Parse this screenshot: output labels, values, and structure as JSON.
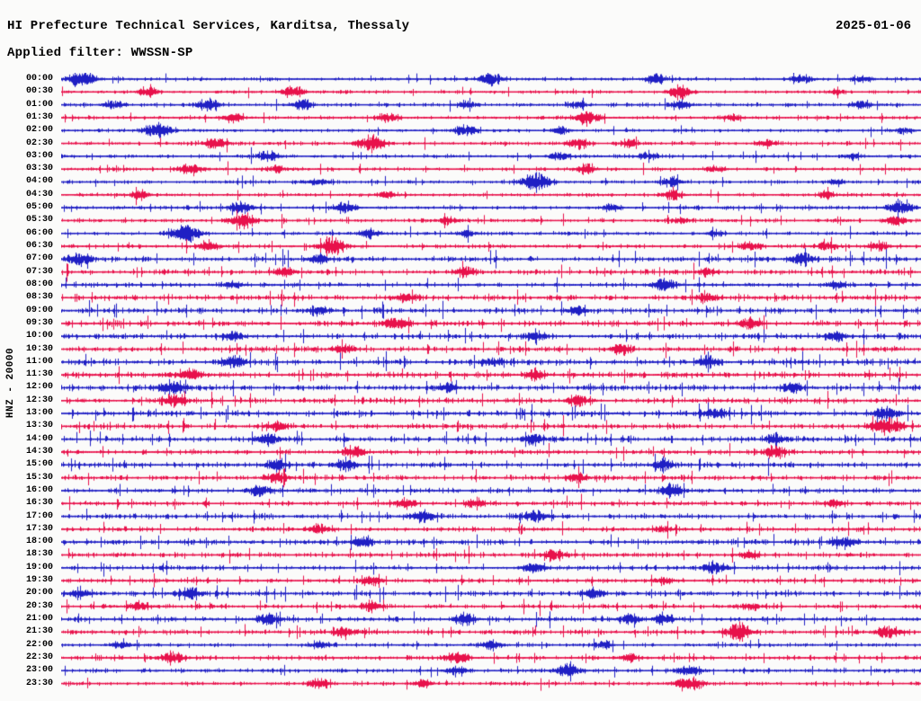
{
  "header": {
    "title": "HI Prefecture Technical Services, Karditsa, Thessaly",
    "date": "2025-01-06",
    "filter_label": "Applied filter: WWSSN-SP"
  },
  "y_axis": {
    "label": "HNZ - 20000",
    "channel": "HNZ",
    "gain": 20000
  },
  "chart_data": {
    "type": "line",
    "subtype": "helicorder-seismogram",
    "title": "HI Prefecture Technical Services, Karditsa, Thessaly",
    "date": "2025-01-06",
    "filter": "WWSSN-SP",
    "row_interval_minutes": 30,
    "time_range": [
      "00:00",
      "24:00"
    ],
    "grid": false,
    "legend": "none",
    "trace_colors": {
      "even": "#1f1fc4",
      "odd": "#e8114b"
    },
    "seed": 20250106,
    "events_format": "[fraction_along_row_0to1, peak_amplitude_px]",
    "rows": [
      {
        "time": "00:00",
        "noise": 0.35,
        "events": [
          [
            0.023,
            8
          ],
          [
            0.5,
            6
          ],
          [
            0.69,
            5
          ],
          [
            0.86,
            5
          ],
          [
            0.93,
            4
          ]
        ]
      },
      {
        "time": "00:30",
        "noise": 0.3,
        "events": [
          [
            0.1,
            5
          ],
          [
            0.27,
            6
          ],
          [
            0.72,
            6
          ],
          [
            0.9,
            3
          ]
        ]
      },
      {
        "time": "01:00",
        "noise": 0.45,
        "events": [
          [
            0.06,
            4
          ],
          [
            0.17,
            6
          ],
          [
            0.28,
            5
          ],
          [
            0.47,
            4
          ],
          [
            0.6,
            4
          ],
          [
            0.72,
            5
          ],
          [
            0.93,
            4
          ]
        ]
      },
      {
        "time": "01:30",
        "noise": 0.35,
        "events": [
          [
            0.2,
            5
          ],
          [
            0.38,
            5
          ],
          [
            0.61,
            7
          ],
          [
            0.78,
            4
          ]
        ]
      },
      {
        "time": "02:00",
        "noise": 0.3,
        "events": [
          [
            0.112,
            8
          ],
          [
            0.47,
            6
          ],
          [
            0.58,
            4
          ],
          [
            0.98,
            4
          ]
        ]
      },
      {
        "time": "02:30",
        "noise": 0.4,
        "events": [
          [
            0.18,
            6
          ],
          [
            0.36,
            8
          ],
          [
            0.6,
            5
          ],
          [
            0.66,
            4
          ],
          [
            0.82,
            4
          ]
        ]
      },
      {
        "time": "03:00",
        "noise": 0.4,
        "events": [
          [
            0.24,
            5
          ],
          [
            0.58,
            5
          ],
          [
            0.68,
            4
          ],
          [
            0.92,
            3
          ]
        ]
      },
      {
        "time": "03:30",
        "noise": 0.35,
        "events": [
          [
            0.15,
            6
          ],
          [
            0.25,
            4
          ],
          [
            0.61,
            5
          ],
          [
            0.76,
            4
          ]
        ]
      },
      {
        "time": "04:00",
        "noise": 0.35,
        "events": [
          [
            0.3,
            4
          ],
          [
            0.551,
            9
          ],
          [
            0.71,
            5
          ],
          [
            0.9,
            3
          ]
        ]
      },
      {
        "time": "04:30",
        "noise": 0.35,
        "events": [
          [
            0.09,
            5
          ],
          [
            0.38,
            4
          ],
          [
            0.71,
            5
          ],
          [
            0.89,
            4
          ]
        ]
      },
      {
        "time": "05:00",
        "noise": 0.4,
        "events": [
          [
            0.21,
            6
          ],
          [
            0.33,
            6
          ],
          [
            0.64,
            4
          ],
          [
            0.975,
            7
          ]
        ]
      },
      {
        "time": "05:30",
        "noise": 0.4,
        "events": [
          [
            0.21,
            8
          ],
          [
            0.45,
            4
          ],
          [
            0.72,
            4
          ],
          [
            0.97,
            5
          ]
        ]
      },
      {
        "time": "06:00",
        "noise": 0.4,
        "events": [
          [
            0.143,
            9
          ],
          [
            0.36,
            5
          ],
          [
            0.47,
            4
          ],
          [
            0.76,
            3
          ]
        ]
      },
      {
        "time": "06:30",
        "noise": 0.45,
        "events": [
          [
            0.17,
            5
          ],
          [
            0.316,
            8
          ],
          [
            0.8,
            5
          ],
          [
            0.89,
            5
          ],
          [
            0.95,
            5
          ]
        ]
      },
      {
        "time": "07:00",
        "noise": 0.75,
        "events": [
          [
            0.02,
            6
          ],
          [
            0.3,
            5
          ],
          [
            0.86,
            6
          ]
        ]
      },
      {
        "time": "07:30",
        "noise": 0.7,
        "events": [
          [
            0.26,
            5
          ],
          [
            0.47,
            5
          ],
          [
            0.75,
            4
          ]
        ]
      },
      {
        "time": "08:00",
        "noise": 0.55,
        "events": [
          [
            0.2,
            4
          ],
          [
            0.7,
            6
          ],
          [
            0.9,
            4
          ]
        ]
      },
      {
        "time": "08:30",
        "noise": 0.8,
        "events": [
          [
            0.4,
            5
          ],
          [
            0.75,
            5
          ]
        ]
      },
      {
        "time": "09:00",
        "noise": 0.85,
        "events": [
          [
            0.3,
            5
          ],
          [
            0.6,
            5
          ]
        ]
      },
      {
        "time": "09:30",
        "noise": 0.8,
        "events": [
          [
            0.39,
            6
          ],
          [
            0.8,
            5
          ]
        ]
      },
      {
        "time": "10:00",
        "noise": 0.8,
        "events": [
          [
            0.2,
            5
          ],
          [
            0.55,
            5
          ],
          [
            0.9,
            5
          ]
        ]
      },
      {
        "time": "10:30",
        "noise": 0.8,
        "events": [
          [
            0.33,
            5
          ],
          [
            0.65,
            5
          ]
        ]
      },
      {
        "time": "11:00",
        "noise": 0.9,
        "events": [
          [
            0.2,
            6
          ],
          [
            0.5,
            5
          ],
          [
            0.75,
            5
          ]
        ]
      },
      {
        "time": "11:30",
        "noise": 0.85,
        "events": [
          [
            0.15,
            6
          ],
          [
            0.55,
            5
          ]
        ]
      },
      {
        "time": "12:00",
        "noise": 0.85,
        "events": [
          [
            0.13,
            7
          ],
          [
            0.45,
            5
          ],
          [
            0.85,
            5
          ]
        ]
      },
      {
        "time": "12:30",
        "noise": 0.85,
        "events": [
          [
            0.13,
            6
          ],
          [
            0.6,
            5
          ]
        ]
      },
      {
        "time": "13:00",
        "noise": 0.85,
        "events": [
          [
            0.76,
            6
          ],
          [
            0.96,
            7
          ]
        ]
      },
      {
        "time": "13:30",
        "noise": 0.8,
        "events": [
          [
            0.25,
            5
          ],
          [
            0.959,
            9
          ]
        ]
      },
      {
        "time": "14:00",
        "noise": 0.8,
        "events": [
          [
            0.24,
            6
          ],
          [
            0.55,
            5
          ],
          [
            0.83,
            5
          ]
        ]
      },
      {
        "time": "14:30",
        "noise": 0.6,
        "events": [
          [
            0.34,
            6
          ],
          [
            0.83,
            6
          ]
        ]
      },
      {
        "time": "15:00",
        "noise": 0.8,
        "events": [
          [
            0.25,
            6
          ],
          [
            0.33,
            6
          ],
          [
            0.7,
            5
          ]
        ]
      },
      {
        "time": "15:30",
        "noise": 0.75,
        "events": [
          [
            0.25,
            6
          ],
          [
            0.6,
            5
          ]
        ]
      },
      {
        "time": "16:00",
        "noise": 0.6,
        "events": [
          [
            0.23,
            6
          ],
          [
            0.71,
            6
          ]
        ]
      },
      {
        "time": "16:30",
        "noise": 0.6,
        "events": [
          [
            0.4,
            5
          ],
          [
            0.48,
            5
          ],
          [
            0.9,
            4
          ]
        ]
      },
      {
        "time": "17:00",
        "noise": 0.75,
        "events": [
          [
            0.42,
            6
          ],
          [
            0.55,
            6
          ]
        ]
      },
      {
        "time": "17:30",
        "noise": 0.6,
        "events": [
          [
            0.3,
            5
          ],
          [
            0.7,
            4
          ]
        ]
      },
      {
        "time": "18:00",
        "noise": 0.75,
        "events": [
          [
            0.35,
            5
          ],
          [
            0.91,
            6
          ]
        ]
      },
      {
        "time": "18:30",
        "noise": 0.6,
        "events": [
          [
            0.57,
            5
          ],
          [
            0.8,
            4
          ]
        ]
      },
      {
        "time": "19:00",
        "noise": 0.6,
        "events": [
          [
            0.55,
            6
          ],
          [
            0.76,
            6
          ]
        ]
      },
      {
        "time": "19:30",
        "noise": 0.55,
        "events": [
          [
            0.36,
            5
          ],
          [
            0.7,
            4
          ]
        ]
      },
      {
        "time": "20:00",
        "noise": 0.75,
        "events": [
          [
            0.02,
            5
          ],
          [
            0.15,
            6
          ],
          [
            0.62,
            5
          ]
        ]
      },
      {
        "time": "20:30",
        "noise": 0.6,
        "events": [
          [
            0.09,
            5
          ],
          [
            0.36,
            5
          ],
          [
            0.8,
            4
          ]
        ]
      },
      {
        "time": "21:00",
        "noise": 0.6,
        "events": [
          [
            0.24,
            6
          ],
          [
            0.47,
            6
          ],
          [
            0.66,
            5
          ],
          [
            0.7,
            5
          ]
        ]
      },
      {
        "time": "21:30",
        "noise": 0.6,
        "events": [
          [
            0.33,
            6
          ],
          [
            0.787,
            8
          ],
          [
            0.96,
            6
          ]
        ]
      },
      {
        "time": "22:00",
        "noise": 0.4,
        "events": [
          [
            0.07,
            4
          ],
          [
            0.3,
            4
          ],
          [
            0.5,
            5
          ],
          [
            0.63,
            4
          ]
        ]
      },
      {
        "time": "22:30",
        "noise": 0.55,
        "events": [
          [
            0.13,
            6
          ],
          [
            0.46,
            6
          ],
          [
            0.66,
            4
          ]
        ]
      },
      {
        "time": "23:00",
        "noise": 0.5,
        "events": [
          [
            0.46,
            5
          ],
          [
            0.588,
            7
          ],
          [
            0.73,
            6
          ]
        ]
      },
      {
        "time": "23:30",
        "noise": 0.4,
        "events": [
          [
            0.3,
            5
          ],
          [
            0.42,
            4
          ],
          [
            0.73,
            8
          ]
        ]
      }
    ]
  }
}
